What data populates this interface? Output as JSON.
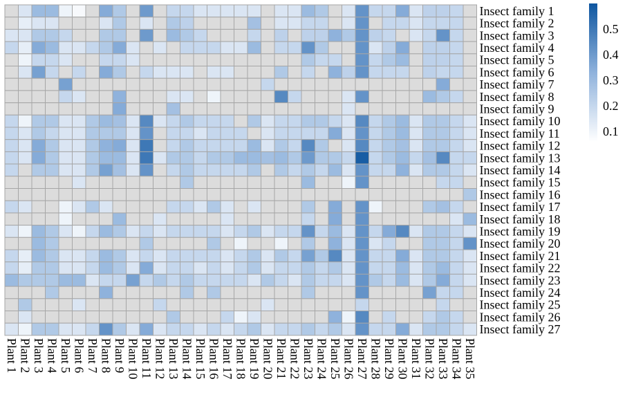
{
  "chart_data": {
    "type": "heatmap",
    "title": "",
    "xlabel": "",
    "ylabel": "",
    "x_categories": [
      "Plant 1",
      "Plant 2",
      "Plant 3",
      "Plant 4",
      "Plant 5",
      "Plant 6",
      "Plant 7",
      "Plant 8",
      "Plant 9",
      "Plant 10",
      "Plant 11",
      "Plant 12",
      "Plant 13",
      "Plant 14",
      "Plant 15",
      "Plant 16",
      "Plant 17",
      "Plant 18",
      "Plant 19",
      "Plant 20",
      "Plant 21",
      "Plant 22",
      "Plant 23",
      "Plant 24",
      "Plant 25",
      "Plant 26",
      "Plant 27",
      "Plant 28",
      "Plant 29",
      "Plant 30",
      "Plant 31",
      "Plant 32",
      "Plant 33",
      "Plant 34",
      "Plant 35"
    ],
    "y_categories": [
      "Insect family 1",
      "Insect family 2",
      "Insect family 3",
      "Insect family 4",
      "Insect family 5",
      "Insect family 6",
      "Insect family 7",
      "Insect family 8",
      "Insect family 9",
      "Insect family 10",
      "Insect family 11",
      "Insect family 12",
      "Insect family 13",
      "Insect family 14",
      "Insect family 15",
      "Insect family 16",
      "Insect family 17",
      "Insect family 18",
      "Insect family 19",
      "Insect family 20",
      "Insect family 21",
      "Insect family 22",
      "Insect family 23",
      "Insect family 24",
      "Insect family 25",
      "Insect family 26",
      "Insect family 27"
    ],
    "values": [
      [
        null,
        0.15,
        0.3,
        0.3,
        0.1,
        0.08,
        null,
        0.35,
        0.25,
        null,
        0.4,
        null,
        0.2,
        0.2,
        0.15,
        0.15,
        0.15,
        0.15,
        0.15,
        null,
        0.15,
        0.15,
        0.3,
        0.25,
        null,
        0.15,
        0.42,
        0.2,
        0.2,
        0.35,
        0.15,
        0.22,
        0.22,
        0.2,
        null
      ],
      [
        null,
        0.12,
        0.15,
        0.15,
        null,
        null,
        null,
        0.15,
        0.25,
        null,
        0.15,
        null,
        0.25,
        0.22,
        null,
        null,
        null,
        null,
        0.28,
        null,
        0.15,
        0.15,
        0.2,
        0.2,
        null,
        0.15,
        0.42,
        null,
        0.2,
        0.2,
        0.15,
        0.2,
        0.2,
        0.2,
        null
      ],
      [
        0.15,
        0.15,
        0.25,
        0.25,
        0.2,
        null,
        null,
        0.25,
        0.25,
        null,
        0.4,
        null,
        0.3,
        0.25,
        0.2,
        null,
        null,
        null,
        0.2,
        null,
        0.22,
        null,
        0.22,
        0.22,
        0.33,
        0.25,
        0.42,
        0.22,
        0.2,
        null,
        0.15,
        0.2,
        0.42,
        0.2,
        null
      ],
      [
        0.2,
        0.12,
        0.35,
        0.3,
        0.15,
        0.15,
        0.2,
        0.25,
        0.35,
        0.15,
        null,
        0.15,
        null,
        0.2,
        0.2,
        0.2,
        0.15,
        0.15,
        0.3,
        null,
        0.2,
        0.2,
        0.42,
        0.25,
        null,
        null,
        0.42,
        0.15,
        0.22,
        0.35,
        null,
        0.22,
        0.22,
        0.2,
        null
      ],
      [
        null,
        0.1,
        0.2,
        0.2,
        0.15,
        null,
        null,
        0.2,
        0.2,
        0.15,
        null,
        null,
        null,
        null,
        null,
        null,
        null,
        null,
        null,
        null,
        null,
        null,
        0.25,
        0.2,
        0.2,
        null,
        0.42,
        0.2,
        0.25,
        0.3,
        null,
        0.22,
        0.22,
        0.2,
        null
      ],
      [
        null,
        0.15,
        0.38,
        0.2,
        null,
        0.2,
        null,
        0.35,
        0.25,
        null,
        0.2,
        0.15,
        0.15,
        0.15,
        null,
        0.15,
        0.15,
        null,
        null,
        null,
        0.25,
        null,
        0.2,
        null,
        0.33,
        0.22,
        0.42,
        0.2,
        0.2,
        0.2,
        null,
        0.22,
        0.2,
        0.2,
        null
      ],
      [
        null,
        null,
        null,
        null,
        0.38,
        null,
        null,
        null,
        null,
        null,
        null,
        null,
        null,
        null,
        null,
        null,
        null,
        null,
        null,
        0.2,
        null,
        null,
        null,
        null,
        null,
        null,
        null,
        null,
        null,
        null,
        null,
        null,
        0.35,
        null,
        null
      ],
      [
        null,
        null,
        null,
        null,
        0.2,
        0.15,
        null,
        null,
        0.33,
        null,
        null,
        null,
        0.15,
        0.15,
        null,
        0.1,
        null,
        null,
        null,
        null,
        0.45,
        0.2,
        null,
        null,
        null,
        0.15,
        0.42,
        null,
        null,
        null,
        null,
        0.3,
        0.25,
        0.2,
        null
      ],
      [
        null,
        null,
        null,
        null,
        null,
        null,
        null,
        null,
        0.35,
        null,
        null,
        null,
        0.28,
        null,
        null,
        null,
        null,
        null,
        null,
        null,
        null,
        null,
        null,
        null,
        null,
        0.15,
        null,
        null,
        null,
        null,
        null,
        null,
        null,
        null,
        null
      ],
      [
        0.2,
        0.1,
        0.25,
        0.25,
        0.15,
        0.15,
        0.25,
        0.3,
        0.28,
        0.15,
        0.45,
        0.15,
        0.2,
        0.25,
        0.2,
        0.2,
        0.2,
        null,
        0.25,
        0.15,
        0.2,
        0.2,
        0.25,
        0.25,
        0.2,
        0.15,
        0.45,
        0.2,
        0.25,
        0.3,
        0.15,
        0.25,
        0.25,
        0.2,
        0.15
      ],
      [
        0.2,
        0.15,
        0.25,
        0.2,
        0.15,
        0.15,
        0.25,
        0.25,
        0.25,
        0.15,
        0.42,
        null,
        0.2,
        0.2,
        0.15,
        0.2,
        0.2,
        0.2,
        null,
        0.15,
        0.2,
        0.2,
        0.2,
        0.2,
        0.35,
        0.15,
        0.42,
        0.2,
        0.25,
        0.3,
        0.15,
        0.25,
        0.25,
        0.2,
        0.15
      ],
      [
        0.2,
        0.15,
        0.35,
        0.25,
        0.15,
        0.15,
        0.25,
        0.33,
        0.35,
        0.15,
        0.5,
        null,
        0.2,
        0.25,
        0.2,
        0.2,
        0.2,
        0.2,
        0.3,
        0.15,
        0.25,
        0.2,
        0.45,
        0.25,
        null,
        0.15,
        0.45,
        0.2,
        0.25,
        0.28,
        0.15,
        0.25,
        0.25,
        0.2,
        0.15
      ],
      [
        0.2,
        0.15,
        0.35,
        0.25,
        0.15,
        0.15,
        0.25,
        0.3,
        0.3,
        0.15,
        0.5,
        0.15,
        0.25,
        0.25,
        0.2,
        0.25,
        0.25,
        0.3,
        0.3,
        0.28,
        0.3,
        0.25,
        0.4,
        0.25,
        0.25,
        0.2,
        0.58,
        0.2,
        0.25,
        0.3,
        0.2,
        0.28,
        0.45,
        0.2,
        0.2
      ],
      [
        0.2,
        null,
        0.25,
        0.25,
        0.15,
        0.15,
        0.25,
        0.38,
        0.28,
        0.15,
        0.42,
        null,
        0.2,
        0.25,
        0.2,
        0.2,
        0.2,
        0.2,
        0.25,
        null,
        0.25,
        0.2,
        0.25,
        0.2,
        0.3,
        0.15,
        0.42,
        0.2,
        0.2,
        0.33,
        0.15,
        0.25,
        0.25,
        0.2,
        0.15
      ],
      [
        null,
        null,
        null,
        null,
        null,
        0.15,
        null,
        null,
        null,
        null,
        null,
        null,
        null,
        0.25,
        null,
        null,
        null,
        null,
        null,
        null,
        null,
        null,
        0.3,
        null,
        null,
        0.1,
        0.42,
        null,
        null,
        null,
        null,
        null,
        0.2,
        0.2,
        null
      ],
      [
        null,
        null,
        null,
        null,
        null,
        null,
        null,
        null,
        null,
        null,
        null,
        null,
        null,
        null,
        null,
        null,
        null,
        null,
        null,
        null,
        null,
        null,
        null,
        null,
        null,
        null,
        null,
        null,
        null,
        null,
        null,
        null,
        null,
        null,
        0.25
      ],
      [
        0.2,
        0.15,
        null,
        null,
        0.1,
        0.15,
        0.25,
        0.15,
        null,
        null,
        null,
        null,
        0.2,
        0.2,
        0.15,
        0.25,
        0.15,
        null,
        0.15,
        null,
        null,
        null,
        0.25,
        null,
        0.35,
        null,
        0.42,
        0.1,
        null,
        null,
        null,
        0.25,
        0.28,
        0.2,
        null
      ],
      [
        null,
        null,
        null,
        null,
        0.1,
        null,
        null,
        null,
        0.3,
        null,
        null,
        0.15,
        null,
        null,
        null,
        null,
        0.15,
        null,
        null,
        null,
        null,
        null,
        0.2,
        null,
        0.35,
        null,
        0.42,
        null,
        null,
        null,
        null,
        null,
        null,
        0.15,
        0.3
      ],
      [
        0.15,
        0.1,
        0.3,
        0.25,
        0.15,
        0.1,
        0.2,
        0.3,
        0.25,
        0.15,
        0.2,
        0.15,
        0.2,
        0.2,
        0.2,
        0.2,
        0.15,
        0.2,
        0.25,
        0.15,
        0.2,
        0.2,
        0.42,
        0.2,
        0.3,
        0.15,
        0.42,
        0.2,
        0.35,
        0.45,
        0.15,
        0.25,
        0.25,
        0.2,
        0.15
      ],
      [
        null,
        null,
        0.3,
        0.25,
        null,
        null,
        null,
        null,
        null,
        null,
        0.25,
        null,
        null,
        null,
        null,
        0.25,
        null,
        0.1,
        null,
        null,
        0.1,
        null,
        0.25,
        null,
        0.33,
        0.15,
        0.42,
        0.15,
        0.2,
        null,
        null,
        0.25,
        0.25,
        0.2,
        0.42
      ],
      [
        0.2,
        0.12,
        0.3,
        0.25,
        0.15,
        0.15,
        0.2,
        0.3,
        0.25,
        0.15,
        0.2,
        0.15,
        0.2,
        0.2,
        0.2,
        0.2,
        0.15,
        0.2,
        0.25,
        0.15,
        0.25,
        0.2,
        0.38,
        0.25,
        0.45,
        0.15,
        0.42,
        0.2,
        0.2,
        0.35,
        0.15,
        0.25,
        0.25,
        0.2,
        0.15
      ],
      [
        0.2,
        0.12,
        0.25,
        0.25,
        0.15,
        0.15,
        0.2,
        0.3,
        0.25,
        0.15,
        0.35,
        0.15,
        0.2,
        0.2,
        0.15,
        0.2,
        0.15,
        0.2,
        0.25,
        0.15,
        0.2,
        0.2,
        0.25,
        0.2,
        0.25,
        0.15,
        0.42,
        0.2,
        0.2,
        0.3,
        0.15,
        0.25,
        0.3,
        0.2,
        0.15
      ],
      [
        0.3,
        0.25,
        0.25,
        0.25,
        0.3,
        0.3,
        0.15,
        0.2,
        0.2,
        0.38,
        0.2,
        0.25,
        0.2,
        0.25,
        0.2,
        0.2,
        0.2,
        0.2,
        0.15,
        0.25,
        0.2,
        0.15,
        0.25,
        0.2,
        0.2,
        0.15,
        0.42,
        0.25,
        0.2,
        0.3,
        0.15,
        0.25,
        0.35,
        0.2,
        0.15
      ],
      [
        null,
        null,
        null,
        0.25,
        null,
        null,
        null,
        0.33,
        null,
        null,
        null,
        null,
        null,
        0.25,
        null,
        0.25,
        null,
        null,
        null,
        null,
        null,
        null,
        0.25,
        null,
        null,
        null,
        0.42,
        null,
        null,
        null,
        null,
        0.38,
        0.2,
        0.2,
        null
      ],
      [
        null,
        0.25,
        null,
        null,
        null,
        0.15,
        null,
        null,
        null,
        null,
        null,
        0.2,
        null,
        null,
        null,
        null,
        null,
        null,
        null,
        0.15,
        null,
        null,
        null,
        null,
        null,
        null,
        0.2,
        null,
        null,
        null,
        null,
        null,
        0.2,
        null,
        null
      ],
      [
        null,
        0.15,
        null,
        null,
        null,
        null,
        null,
        null,
        null,
        null,
        null,
        null,
        0.25,
        null,
        null,
        null,
        0.2,
        0.1,
        0.15,
        null,
        null,
        null,
        null,
        null,
        0.33,
        0.1,
        0.45,
        null,
        0.2,
        null,
        null,
        0.2,
        0.25,
        0.2,
        null
      ],
      [
        0.15,
        0.1,
        0.25,
        0.25,
        0.15,
        0.15,
        0.2,
        0.42,
        0.25,
        0.15,
        0.35,
        0.15,
        0.2,
        0.2,
        0.15,
        0.2,
        0.15,
        0.2,
        0.25,
        0.15,
        0.2,
        0.2,
        0.25,
        0.2,
        0.25,
        0.15,
        0.42,
        0.2,
        0.2,
        0.35,
        0.15,
        0.25,
        0.25,
        0.2,
        0.15
      ]
    ],
    "missing_color": "#dcdcdc",
    "border_color": "#a6a6a6",
    "color_low": "#ffffff",
    "color_high": "#0e56a0",
    "color_range": [
      0.06,
      0.6
    ],
    "colorbar_ticks": [
      "0.1",
      "0.2",
      "0.3",
      "0.4",
      "0.5"
    ],
    "colorbar_tick_values": [
      0.1,
      0.2,
      0.3,
      0.4,
      0.5
    ],
    "legend_position": "right"
  }
}
